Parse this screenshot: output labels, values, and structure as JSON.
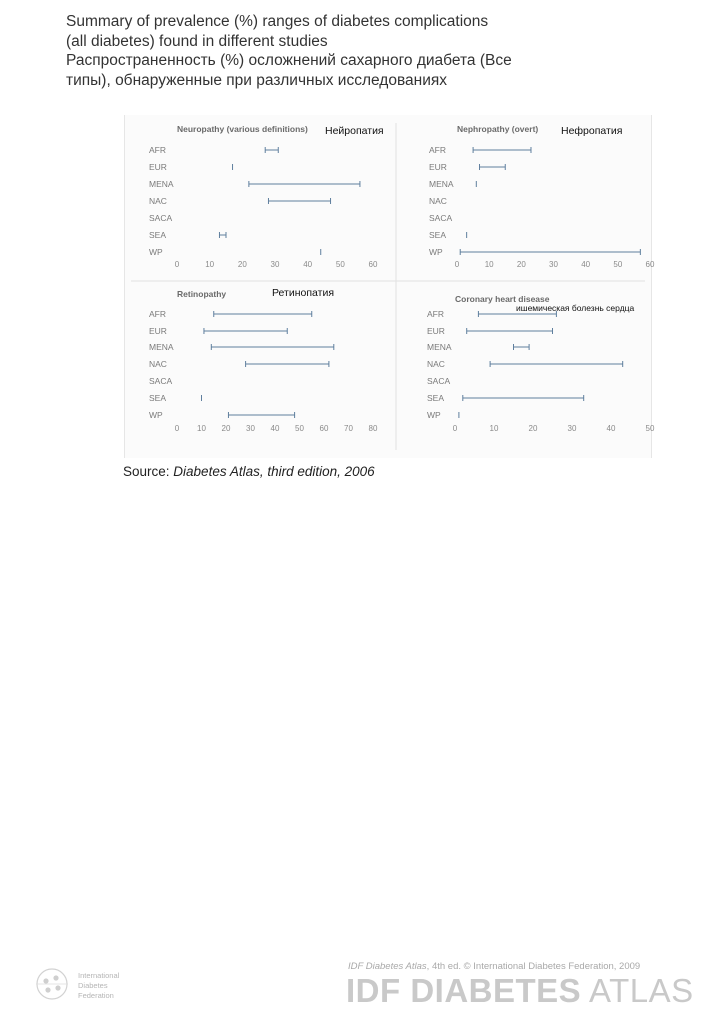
{
  "title": {
    "line1": "Summary of prevalence (%) ranges of diabetes complications",
    "line2": "(all diabetes) found in different studies",
    "line3": "Распространенность (%) осложнений сахарного диабета (Все",
    "line4": "типы), обнаруженные при различных исследованиях"
  },
  "source": {
    "label": "Source:",
    "text": "Diabetes Atlas, third edition, 2006"
  },
  "footer": {
    "caption_italic": "IDF Diabetes Atlas",
    "caption_rest": ", 4th ed. © International Diabetes Federation, 2009",
    "brand_bold": "IDF DIABETES",
    "brand_light": " ATLAS",
    "org_lines": [
      "International",
      "Diabetes",
      "Federation"
    ],
    "logo_icon": "idf-logo-icon"
  },
  "colors": {
    "range_line": "#5f7f9e",
    "axis_text": "#8a8a8a",
    "label_text": "#7a7a7a",
    "title_text": "#6a6a6a"
  },
  "chart_data": [
    {
      "type": "range",
      "title": "Neuropathy (various definitions)",
      "annotation": "Нейропатия",
      "categories": [
        "AFR",
        "EUR",
        "MENA",
        "NAC",
        "SACA",
        "SEA",
        "WP"
      ],
      "xticks": [
        0,
        10,
        20,
        30,
        40,
        50,
        60
      ],
      "xlim": [
        0,
        60
      ],
      "ranges": [
        [
          27,
          31
        ],
        [
          17,
          17
        ],
        [
          22,
          56
        ],
        [
          28,
          47
        ],
        null,
        [
          13,
          15
        ],
        [
          44,
          44
        ]
      ]
    },
    {
      "type": "range",
      "title": "Nephropathy (overt)",
      "annotation": "Нефропатия",
      "categories": [
        "AFR",
        "EUR",
        "MENA",
        "NAC",
        "SACA",
        "SEA",
        "WP"
      ],
      "xticks": [
        0,
        10,
        20,
        30,
        40,
        50,
        60
      ],
      "xlim": [
        0,
        60
      ],
      "ranges": [
        [
          5,
          23
        ],
        [
          7,
          15
        ],
        [
          6,
          6
        ],
        null,
        null,
        [
          3,
          3
        ],
        [
          1,
          57
        ]
      ]
    },
    {
      "type": "range",
      "title": "Retinopathy",
      "annotation": "Ретинопатия",
      "categories": [
        "AFR",
        "EUR",
        "MENA",
        "NAC",
        "SACA",
        "SEA",
        "WP"
      ],
      "xticks": [
        0,
        10,
        20,
        30,
        40,
        50,
        60,
        70,
        80
      ],
      "xlim": [
        0,
        80
      ],
      "ranges": [
        [
          15,
          55
        ],
        [
          11,
          45
        ],
        [
          14,
          64
        ],
        [
          28,
          62
        ],
        null,
        [
          10,
          10
        ],
        [
          21,
          48
        ]
      ]
    },
    {
      "type": "range",
      "title": "Coronary heart disease",
      "annotation": "ишемическая болезнь сердца",
      "categories": [
        "AFR",
        "EUR",
        "MENA",
        "NAC",
        "SACA",
        "SEA",
        "WP"
      ],
      "xticks": [
        0,
        10,
        20,
        30,
        40,
        50
      ],
      "xlim": [
        0,
        50
      ],
      "ranges": [
        [
          6,
          26
        ],
        [
          3,
          25
        ],
        [
          15,
          19
        ],
        [
          9,
          43
        ],
        null,
        [
          2,
          33
        ],
        [
          1,
          1
        ]
      ]
    }
  ]
}
